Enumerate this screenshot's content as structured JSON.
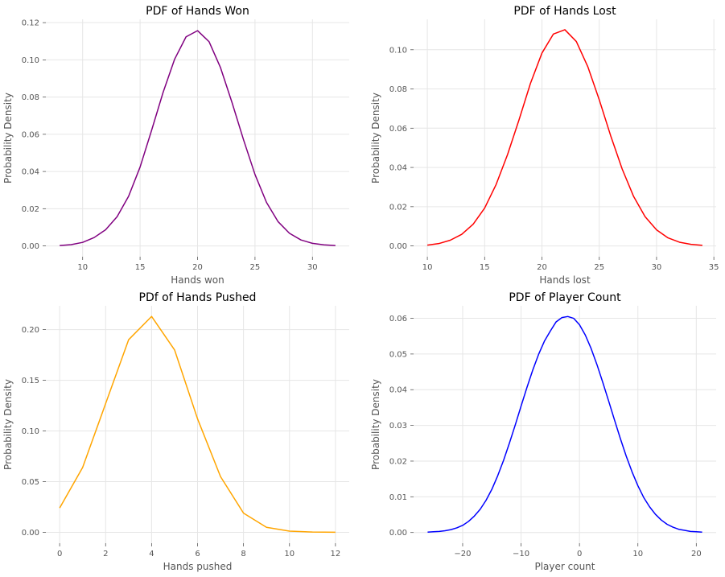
{
  "chart_data": [
    {
      "type": "line",
      "title": "PDF of Hands Won",
      "xlabel": "Hands won",
      "ylabel": "Probability Density",
      "color": "#800080",
      "xlim": [
        6.8,
        33.2
      ],
      "ylim": [
        -0.0058,
        0.1218
      ],
      "xticks": [
        10,
        15,
        20,
        25,
        30
      ],
      "xtick_labels": [
        "10",
        "15",
        "20",
        "25",
        "30"
      ],
      "yticks": [
        0.0,
        0.02,
        0.04,
        0.06,
        0.08,
        0.1,
        0.12
      ],
      "ytick_labels": [
        "0.00",
        "0.02",
        "0.04",
        "0.06",
        "0.08",
        "0.10",
        "0.12"
      ],
      "grid": true,
      "x": [
        8,
        9,
        10,
        11,
        12,
        13,
        14,
        15,
        16,
        17,
        18,
        19,
        20,
        21,
        22,
        23,
        24,
        25,
        26,
        27,
        28,
        29,
        30,
        31,
        32
      ],
      "y": [
        0.0002,
        0.0007,
        0.0019,
        0.0045,
        0.0087,
        0.0157,
        0.0267,
        0.0424,
        0.0621,
        0.0825,
        0.1003,
        0.1124,
        0.1157,
        0.1098,
        0.0958,
        0.0771,
        0.0571,
        0.0384,
        0.0234,
        0.0131,
        0.0068,
        0.0032,
        0.0014,
        0.0006,
        0.0002
      ]
    },
    {
      "type": "line",
      "title": "PDF of Hands Lost",
      "xlabel": "Hands lost",
      "ylabel": "Probability Density",
      "color": "#ff0000",
      "xlim": [
        8.8,
        35.2
      ],
      "ylim": [
        -0.0055,
        0.1155
      ],
      "xticks": [
        10,
        15,
        20,
        25,
        30,
        35
      ],
      "xtick_labels": [
        "10",
        "15",
        "20",
        "25",
        "30",
        "35"
      ],
      "yticks": [
        0.0,
        0.02,
        0.04,
        0.06,
        0.08,
        0.1
      ],
      "ytick_labels": [
        "0.00",
        "0.02",
        "0.04",
        "0.06",
        "0.08",
        "0.10"
      ],
      "grid": true,
      "x": [
        10,
        11,
        12,
        13,
        14,
        15,
        16,
        17,
        18,
        19,
        20,
        21,
        22,
        23,
        24,
        25,
        26,
        27,
        28,
        29,
        30,
        31,
        32,
        33,
        34
      ],
      "y": [
        0.0004,
        0.0012,
        0.0029,
        0.0059,
        0.0111,
        0.0193,
        0.0313,
        0.0466,
        0.0643,
        0.0829,
        0.0983,
        0.108,
        0.1102,
        0.1042,
        0.0914,
        0.0745,
        0.0561,
        0.0392,
        0.0252,
        0.0149,
        0.0082,
        0.0041,
        0.0019,
        0.0008,
        0.0003
      ]
    },
    {
      "type": "line",
      "title": "PDf of Hands Pushed",
      "xlabel": "Hands pushed",
      "ylabel": "Probability Density",
      "color": "#ffa500",
      "xlim": [
        -0.6,
        12.6
      ],
      "ylim": [
        -0.0107,
        0.2235
      ],
      "xticks": [
        0,
        2,
        4,
        6,
        8,
        10,
        12
      ],
      "xtick_labels": [
        "0",
        "2",
        "4",
        "6",
        "8",
        "10",
        "12"
      ],
      "yticks": [
        0.0,
        0.05,
        0.1,
        0.15,
        0.2
      ],
      "ytick_labels": [
        "0.00",
        "0.05",
        "0.10",
        "0.15",
        "0.20"
      ],
      "grid": true,
      "x": [
        0,
        1,
        2,
        3,
        4,
        5,
        6,
        7,
        8,
        9,
        10,
        11,
        12
      ],
      "y": [
        0.024,
        0.064,
        0.127,
        0.19,
        0.213,
        0.18,
        0.112,
        0.055,
        0.019,
        0.005,
        0.0012,
        0.0003,
        0.0001
      ]
    },
    {
      "type": "line",
      "title": "PDF of Player Count",
      "xlabel": "Player count",
      "ylabel": "Probability Density",
      "color": "#0000ff",
      "xlim": [
        -28.4,
        23.4
      ],
      "ylim": [
        -0.003,
        0.0635
      ],
      "xticks": [
        -20,
        -10,
        0,
        10,
        20
      ],
      "xtick_labels": [
        "−20",
        "−10",
        "0",
        "10",
        "20"
      ],
      "yticks": [
        0.0,
        0.01,
        0.02,
        0.03,
        0.04,
        0.05,
        0.06
      ],
      "ytick_labels": [
        "0.00",
        "0.01",
        "0.02",
        "0.03",
        "0.04",
        "0.05",
        "0.06"
      ],
      "grid": true,
      "x": [
        -26,
        -25,
        -24,
        -23,
        -22,
        -21,
        -20,
        -19,
        -18,
        -17,
        -16,
        -15,
        -14,
        -13,
        -12,
        -11,
        -10,
        -9,
        -8,
        -7,
        -6,
        -5,
        -4,
        -3,
        -2,
        -1,
        0,
        1,
        2,
        3,
        4,
        5,
        6,
        7,
        8,
        9,
        10,
        11,
        12,
        13,
        14,
        15,
        16,
        17,
        18,
        19,
        20,
        21
      ],
      "y": [
        0.0001,
        0.0002,
        0.0003,
        0.0005,
        0.0008,
        0.0013,
        0.002,
        0.0031,
        0.0046,
        0.0065,
        0.009,
        0.0121,
        0.0159,
        0.0202,
        0.025,
        0.0301,
        0.0354,
        0.0406,
        0.0455,
        0.0499,
        0.0536,
        0.0564,
        0.059,
        0.0602,
        0.0605,
        0.06,
        0.0582,
        0.0553,
        0.0515,
        0.047,
        0.042,
        0.0368,
        0.0315,
        0.0263,
        0.0214,
        0.017,
        0.0131,
        0.0098,
        0.0072,
        0.0051,
        0.0035,
        0.0023,
        0.0015,
        0.0009,
        0.0006,
        0.0003,
        0.0002,
        0.0001
      ]
    }
  ]
}
